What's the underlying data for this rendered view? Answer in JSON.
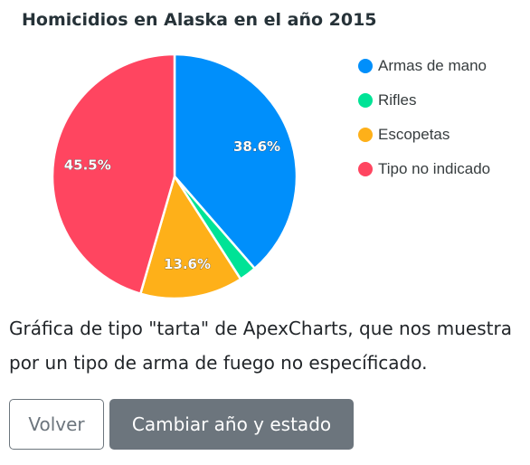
{
  "chart_data": {
    "type": "pie",
    "title": "Homicidios en Alaska en el año 2015",
    "labels": [
      "Armas de mano",
      "Rifles",
      "Escopetas",
      "Tipo no indicado"
    ],
    "values": [
      38.6,
      2.3,
      13.6,
      45.5
    ],
    "data_labels": [
      "38.6%",
      "",
      "13.6%",
      "45.5%"
    ],
    "colors": [
      "#008ffb",
      "#00e396",
      "#feb019",
      "#ff4560"
    ],
    "legend_position": "right"
  },
  "description": {
    "line1": "Gráfica de tipo \"tarta\" de ApexCharts, que nos muestra",
    "line2": "por un tipo de arma de fuego no especíﬁcado."
  },
  "buttons": {
    "back_label": "Volver",
    "change_label": "Cambiar año y estado"
  }
}
